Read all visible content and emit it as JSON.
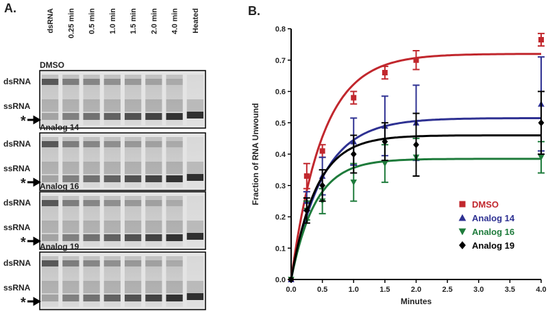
{
  "panel_a": {
    "label": "A.",
    "lanes": [
      "dsRNA",
      "0.25 min",
      "0.5 min",
      "1.0 min",
      "1.5 min",
      "2.0 min",
      "4.0 min",
      "Heated"
    ],
    "gels": [
      {
        "title": "DMSO",
        "row_labels": [
          "dsRNA",
          "ssRNA",
          "*"
        ]
      },
      {
        "title": "Analog 14",
        "row_labels": [
          "dsRNA",
          "ssRNA",
          "*"
        ]
      },
      {
        "title": "Analog 16",
        "row_labels": [
          "dsRNA",
          "ssRNA",
          "*"
        ]
      },
      {
        "title": "Analog 19",
        "row_labels": [
          "dsRNA",
          "ssRNA",
          "*"
        ]
      }
    ]
  },
  "chart_data": {
    "type": "scatter",
    "panel_label": "B.",
    "x_label": "Minutes",
    "y_label": "Fraction of RNA Unwound",
    "x": [
      0,
      0.25,
      0.5,
      1.0,
      1.5,
      2.0,
      4.0
    ],
    "xlim": [
      0,
      4
    ],
    "ylim": [
      0,
      0.8
    ],
    "xticks": [
      {
        "value": 0,
        "label": "0.0"
      },
      0.5,
      {
        "value": 1,
        "label": "1.0"
      },
      1.5,
      {
        "value": 2,
        "label": "2.0"
      },
      2.5,
      {
        "value": 3,
        "label": "3.0"
      },
      3.5,
      {
        "value": 4,
        "label": "4.0"
      }
    ],
    "yticks": [
      {
        "value": 0,
        "label": "0.0"
      },
      0.1,
      0.2,
      0.3,
      0.4,
      0.5,
      0.6,
      0.7,
      0.8
    ],
    "legend": "right",
    "series": [
      {
        "name": "DMSO",
        "color": "#c1272d",
        "marker": "square",
        "values": [
          0,
          0.33,
          0.41,
          0.58,
          0.66,
          0.7,
          0.765
        ],
        "errors": [
          0,
          0.04,
          0.02,
          0.02,
          0.02,
          0.03,
          0.02
        ],
        "fit_plateau": 0.72,
        "fit_rate": 2.0
      },
      {
        "name": "Analog 14",
        "color": "#2e3192",
        "marker": "triangle-up",
        "values": [
          0,
          0.25,
          0.33,
          0.44,
          0.49,
          0.5,
          0.56
        ],
        "errors": [
          0,
          0.03,
          0.06,
          0.075,
          0.095,
          0.12,
          0.15
        ],
        "fit_plateau": 0.515,
        "fit_rate": 2.0
      },
      {
        "name": "Analog 16",
        "color": "#1e7b3b",
        "marker": "triangle-down",
        "values": [
          0,
          0.22,
          0.25,
          0.31,
          0.37,
          0.39,
          0.39
        ],
        "errors": [
          0,
          0.03,
          0.04,
          0.06,
          0.06,
          0.06,
          0.05
        ],
        "fit_plateau": 0.385,
        "fit_rate": 2.6
      },
      {
        "name": "Analog 19",
        "color": "#000000",
        "marker": "diamond",
        "values": [
          0,
          0.22,
          0.3,
          0.4,
          0.44,
          0.43,
          0.5
        ],
        "errors": [
          0,
          0.04,
          0.05,
          0.06,
          0.06,
          0.1,
          0.1
        ],
        "fit_plateau": 0.46,
        "fit_rate": 2.5
      }
    ]
  }
}
